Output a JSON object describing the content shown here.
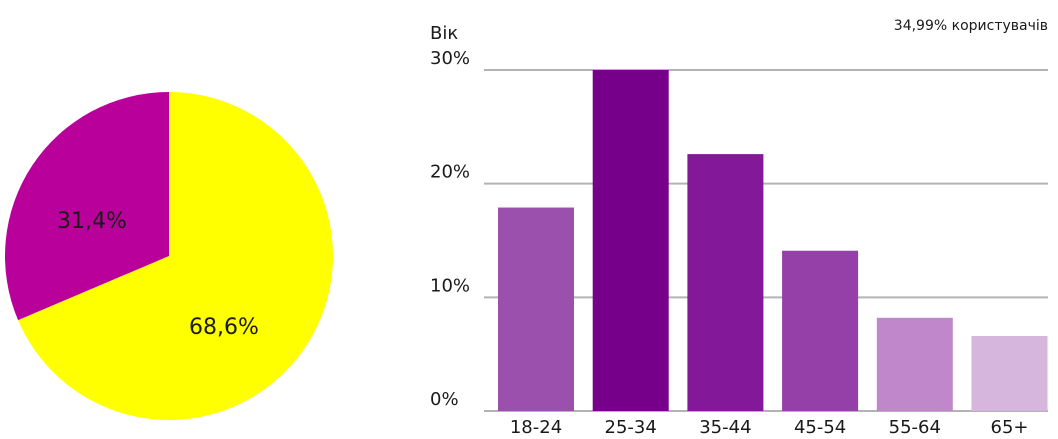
{
  "chart_data": [
    {
      "type": "pie",
      "slices": [
        {
          "label": "68,6%",
          "value": 68.6,
          "color": "#ffff00"
        },
        {
          "label": "31,4%",
          "value": 31.4,
          "color": "#b9009b"
        }
      ]
    },
    {
      "type": "bar",
      "ylabel": "Вік",
      "note": "34,99% користувачів",
      "ylim": [
        0,
        30
      ],
      "yticks": [
        {
          "value": 0,
          "label": "0%"
        },
        {
          "value": 10,
          "label": "10%"
        },
        {
          "value": 20,
          "label": "20%"
        },
        {
          "value": 30,
          "label": "30%"
        }
      ],
      "grid": true,
      "categories": [
        "18-24",
        "25-34",
        "35-44",
        "45-54",
        "55-64",
        "65+"
      ],
      "values": [
        17.9,
        30,
        22.6,
        14.1,
        8.2,
        6.6
      ],
      "colors": [
        "#9c50ad",
        "#76008a",
        "#831898",
        "#9440a8",
        "#c088ca",
        "#d7b6de"
      ],
      "gridline_color": "#b3b3b3"
    }
  ]
}
